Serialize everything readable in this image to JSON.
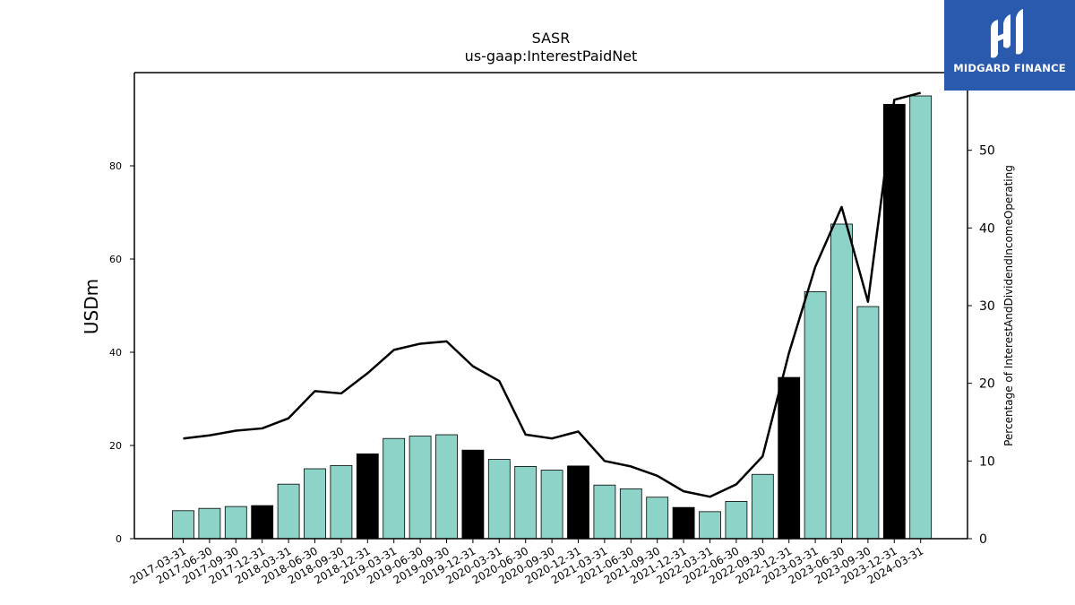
{
  "chart_data": {
    "type": "bar",
    "title": "SASR",
    "subtitle": "us-gaap:InterestPaidNet",
    "ylabel": "USDm",
    "y2label": "Percentage of InterestAndDividendIncomeOperating",
    "ylim": [
      0,
      100
    ],
    "y2lim": [
      0,
      60
    ],
    "yticks": [
      0,
      20,
      40,
      60,
      80
    ],
    "y2ticks": [
      0,
      10,
      20,
      30,
      40,
      50
    ],
    "categories": [
      "2017-03-31",
      "2017-06-30",
      "2017-09-30",
      "2017-12-31",
      "2018-03-31",
      "2018-06-30",
      "2018-09-30",
      "2018-12-31",
      "2019-03-31",
      "2019-06-30",
      "2019-09-30",
      "2019-12-31",
      "2020-03-31",
      "2020-06-30",
      "2020-09-30",
      "2020-12-31",
      "2021-03-31",
      "2021-06-30",
      "2021-09-30",
      "2021-12-31",
      "2022-03-31",
      "2022-06-30",
      "2022-09-30",
      "2022-12-31",
      "2023-03-31",
      "2023-06-30",
      "2023-09-30",
      "2023-12-31",
      "2024-03-31"
    ],
    "values": [
      6.0,
      6.5,
      6.9,
      7.1,
      11.7,
      15.0,
      15.7,
      18.2,
      21.5,
      22.0,
      22.3,
      19.0,
      17.0,
      15.5,
      14.7,
      15.6,
      11.5,
      10.7,
      8.9,
      6.7,
      5.8,
      8.0,
      13.8,
      34.6,
      53.0,
      67.5,
      49.8,
      93.2,
      95.0
    ],
    "highlight": [
      false,
      false,
      false,
      true,
      false,
      false,
      false,
      true,
      false,
      false,
      false,
      true,
      false,
      false,
      false,
      true,
      false,
      false,
      false,
      true,
      false,
      false,
      false,
      true,
      false,
      false,
      false,
      true,
      false
    ],
    "line_series": {
      "values": [
        12.9,
        13.3,
        13.9,
        14.2,
        15.5,
        19.0,
        18.7,
        21.3,
        24.3,
        25.1,
        25.4,
        22.2,
        20.3,
        13.4,
        12.9,
        13.8,
        10.0,
        9.3,
        8.1,
        6.1,
        5.4,
        7.0,
        10.6,
        23.9,
        35.0,
        42.7,
        30.5,
        56.5,
        57.4
      ]
    },
    "colors": {
      "bar": "#8dd3c7",
      "bar_highlight": "#000000",
      "line": "#000000"
    },
    "grid": false
  },
  "logo": {
    "text": "MIDGARD FINANCE",
    "color": "#2a5aad"
  }
}
